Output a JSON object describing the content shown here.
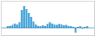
{
  "chart_data": {
    "type": "bar",
    "categories": [
      null,
      null,
      null,
      null,
      null,
      null,
      null,
      null,
      null,
      null,
      null,
      null,
      null,
      null,
      null,
      null,
      null,
      null,
      null,
      null,
      null,
      null,
      null,
      null,
      null,
      null,
      null,
      null,
      null,
      null,
      null,
      null,
      null,
      null,
      null
    ],
    "values": [
      0.1,
      0.15,
      0.25,
      0.4,
      0.3,
      0.5,
      1.8,
      2.2,
      1.9,
      1.5,
      1.1,
      0.6,
      0.3,
      0.15,
      0.1,
      0.2,
      0.15,
      0.35,
      0.5,
      0.4,
      0.3,
      0.25,
      0.35,
      0.3,
      0.2,
      0.25,
      0.15,
      0.1,
      0.05,
      -0.5,
      0.05,
      0.1,
      -0.1,
      0.05,
      0.1
    ],
    "color": "#4db3e6",
    "ylim": [
      -0.8,
      2.8
    ],
    "tick_labels": false
  }
}
